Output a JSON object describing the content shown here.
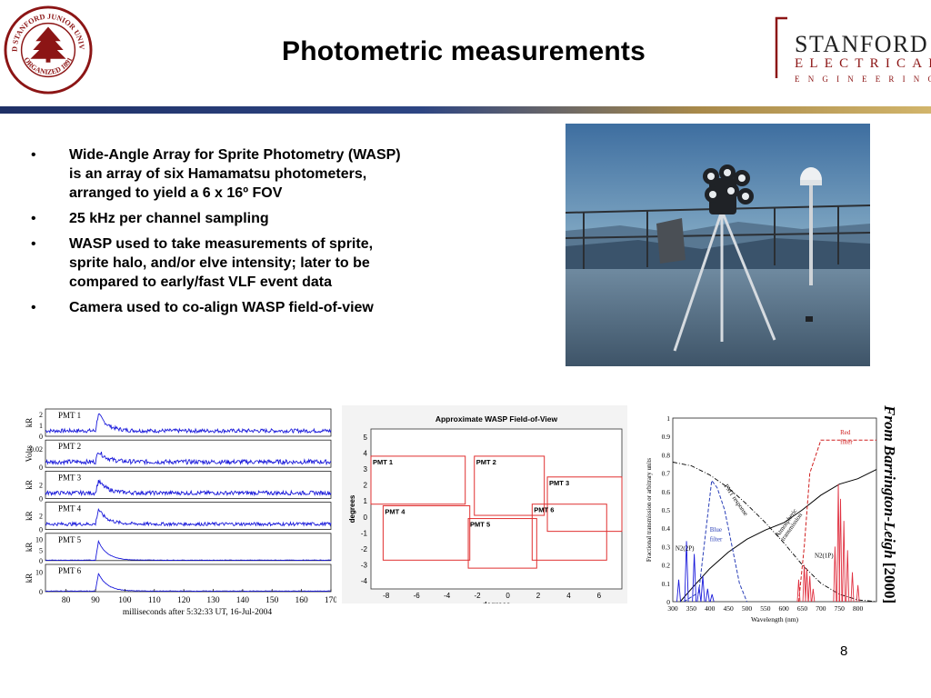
{
  "slide": {
    "title": "Photometric measurements",
    "page_number": "8"
  },
  "logos": {
    "seal_icon": "stanford-seal-icon",
    "seal_text": "LELAND STANFORD JUNIOR UNIVERSITY",
    "seal_bottom": "ORGANIZED 1891",
    "dept_line1": "STANFORD",
    "dept_line2": "ELECTRICAL",
    "dept_line3": "ENGINEERING",
    "accent_color": "#8c1515"
  },
  "bullets": [
    {
      "lines": [
        "Wide-Angle Array for Sprite Photometry (WASP)",
        "is an array of six Hamamatsu photometers,",
        "arranged to yield a 6 x 16º FOV"
      ]
    },
    {
      "lines": [
        "25 kHz per channel sampling"
      ]
    },
    {
      "lines": [
        "WASP used to take measurements of sprite,",
        "sprite halo, and/or elve intensity; later to be",
        "compared to early/fast VLF event data"
      ]
    },
    {
      "lines": [
        "Camera used to co-align WASP field-of-view"
      ]
    }
  ],
  "credit": {
    "name": "From Barrington-Leigh",
    "year": "[2000]"
  },
  "chart_data": [
    {
      "type": "line",
      "panels": [
        {
          "name": "PMT 1",
          "ylabel": "kR",
          "yticks": [
            "2",
            "1",
            "0"
          ],
          "ylim": [
            0,
            2.5
          ],
          "peak": 1.6,
          "noise": 0.18,
          "base": 0.5
        },
        {
          "name": "PMT 2",
          "ylabel": "Volts",
          "yticks": [
            "0.02",
            "0"
          ],
          "ylim": [
            0,
            0.03
          ],
          "peak": 0.012,
          "noise": 0.0025,
          "base": 0.006
        },
        {
          "name": "PMT 3",
          "ylabel": "kR",
          "yticks": [
            "2",
            "0"
          ],
          "ylim": [
            0,
            4
          ],
          "peak": 1.8,
          "noise": 0.3,
          "base": 0.8
        },
        {
          "name": "PMT 4",
          "ylabel": "kR",
          "yticks": [
            "2",
            "0"
          ],
          "ylim": [
            0,
            4
          ],
          "peak": 2.2,
          "noise": 0.25,
          "base": 0.8
        },
        {
          "name": "PMT 5",
          "ylabel": "kR",
          "yticks": [
            "10",
            "5",
            "0"
          ],
          "ylim": [
            0,
            13
          ],
          "peak": 9,
          "noise": 0.1,
          "base": 0.2
        },
        {
          "name": "PMT 6",
          "ylabel": "kR",
          "yticks": [
            "10",
            "0"
          ],
          "ylim": [
            0,
            14
          ],
          "peak": 9,
          "noise": 0.15,
          "base": 0.3
        }
      ],
      "x_ticks": [
        80,
        90,
        100,
        110,
        120,
        130,
        140,
        150,
        160,
        170
      ],
      "xlim": [
        73,
        170
      ],
      "peak_x": 91,
      "xlabel": "milliseconds after 5:32:33 UT, 16-Jul-2004",
      "line_color": "#1a1adb"
    },
    {
      "type": "diagram",
      "title": "Approximate WASP Field-of-View",
      "xlabel": "degrees",
      "ylabel": "degrees",
      "xlim": [
        -9,
        7.5
      ],
      "ylim": [
        -4.5,
        5.5
      ],
      "x_ticks": [
        -8,
        -6,
        -4,
        -2,
        0,
        2,
        4,
        6
      ],
      "y_ticks": [
        5,
        4,
        3,
        2,
        1,
        0,
        -1,
        -2,
        -3,
        -4
      ],
      "rect_color": "#e03030",
      "fields": [
        {
          "label": "PMT 1",
          "x0": -9,
          "x1": -2.8,
          "y0": 0.8,
          "y1": 3.8
        },
        {
          "label": "PMT 2",
          "x0": -2.2,
          "x1": 2.4,
          "y0": 0.1,
          "y1": 3.8
        },
        {
          "label": "PMT 3",
          "x0": 2.6,
          "x1": 7.5,
          "y0": -0.9,
          "y1": 2.5
        },
        {
          "label": "PMT 4",
          "x0": -8.2,
          "x1": -2.5,
          "y0": -2.7,
          "y1": 0.7
        },
        {
          "label": "PMT 5",
          "x0": -2.6,
          "x1": 1.9,
          "y0": -3.2,
          "y1": -0.1
        },
        {
          "label": "PMT 6",
          "x0": 1.6,
          "x1": 6.5,
          "y0": -2.7,
          "y1": 0.8
        }
      ]
    },
    {
      "type": "line",
      "xlabel": "Wavelength (nm)",
      "ylabel": "Fractional transmission or arbitrary units",
      "xlim": [
        300,
        850
      ],
      "ylim": [
        0,
        1
      ],
      "x_ticks": [
        300,
        350,
        400,
        450,
        500,
        550,
        600,
        650,
        700,
        750,
        800
      ],
      "y_ticks": [
        0,
        0.1,
        0.2,
        0.3,
        0.4,
        0.5,
        0.6,
        0.7,
        0.8,
        0.9,
        1
      ],
      "annotations": {
        "red_filter": "Red filter",
        "blue_filter": "Blue filter",
        "pmt_response": "PMT response",
        "atmospheric": "Atmospheric transmission",
        "n2_2p": "N2(2P)",
        "n2_1p": "N2(1P)"
      },
      "curves": {
        "pmt_response": {
          "x": [
            300,
            350,
            400,
            450,
            500,
            550,
            600,
            650,
            700,
            750,
            800,
            850
          ],
          "y": [
            0.76,
            0.74,
            0.69,
            0.62,
            0.53,
            0.43,
            0.32,
            0.2,
            0.1,
            0.04,
            0.01,
            0.0
          ]
        },
        "atmospheric": {
          "x": [
            320,
            350,
            400,
            450,
            500,
            550,
            600,
            650,
            700,
            750,
            800,
            850
          ],
          "y": [
            0.0,
            0.07,
            0.18,
            0.27,
            0.34,
            0.39,
            0.43,
            0.5,
            0.58,
            0.64,
            0.67,
            0.72
          ]
        },
        "blue_filter": {
          "x": [
            330,
            370,
            390,
            405,
            420,
            440,
            460,
            480,
            500
          ],
          "y": [
            0.0,
            0.05,
            0.4,
            0.66,
            0.62,
            0.5,
            0.3,
            0.1,
            0.0
          ]
        },
        "red_filter": {
          "x": [
            640,
            655,
            670,
            700,
            850
          ],
          "y": [
            0.0,
            0.3,
            0.7,
            0.88,
            0.88
          ]
        }
      },
      "n2_2p_lines": [
        {
          "x": 316,
          "y": 0.12
        },
        {
          "x": 337,
          "y": 0.33
        },
        {
          "x": 358,
          "y": 0.26
        },
        {
          "x": 371,
          "y": 0.08
        },
        {
          "x": 381,
          "y": 0.14
        },
        {
          "x": 394,
          "y": 0.07
        },
        {
          "x": 406,
          "y": 0.04
        }
      ],
      "n2_1p_lines": [
        {
          "x": 640,
          "y": 0.12
        },
        {
          "x": 655,
          "y": 0.2
        },
        {
          "x": 662,
          "y": 0.18
        },
        {
          "x": 670,
          "y": 0.14
        },
        {
          "x": 679,
          "y": 0.07
        },
        {
          "x": 738,
          "y": 0.3
        },
        {
          "x": 747,
          "y": 0.64
        },
        {
          "x": 753,
          "y": 0.56
        },
        {
          "x": 762,
          "y": 0.44
        },
        {
          "x": 772,
          "y": 0.28
        },
        {
          "x": 785,
          "y": 0.16
        },
        {
          "x": 800,
          "y": 0.09
        }
      ],
      "colors": {
        "pmt": "#2a3fb8",
        "blue_filter": "#2a3fb8",
        "red_filter": "#d02020",
        "atmospheric": "#000000",
        "n2_2p": "#1a1adb",
        "n2_1p": "#e03040"
      }
    }
  ]
}
